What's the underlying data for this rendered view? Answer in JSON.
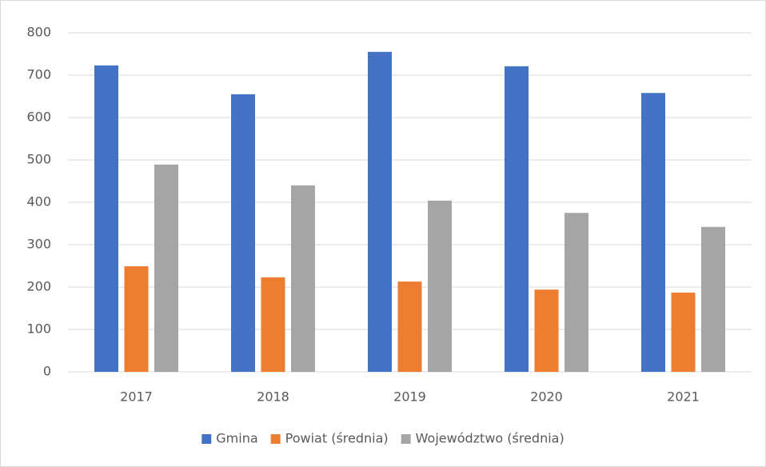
{
  "chart_data": {
    "type": "bar",
    "categories": [
      "2017",
      "2018",
      "2019",
      "2020",
      "2021"
    ],
    "series": [
      {
        "name": "Gmina",
        "color": "#4472c4",
        "values": [
          723,
          655,
          755,
          721,
          658
        ]
      },
      {
        "name": "Powiat (średnia)",
        "color": "#ed7d31",
        "values": [
          249,
          223,
          213,
          194,
          187
        ]
      },
      {
        "name": "Województwo (średnia)",
        "color": "#a5a5a5",
        "values": [
          489,
          440,
          404,
          375,
          342
        ]
      }
    ],
    "ylim": [
      0,
      800
    ],
    "yticks": [
      0,
      100,
      200,
      300,
      400,
      500,
      600,
      700,
      800
    ],
    "grid": true,
    "legend": "bottom"
  }
}
